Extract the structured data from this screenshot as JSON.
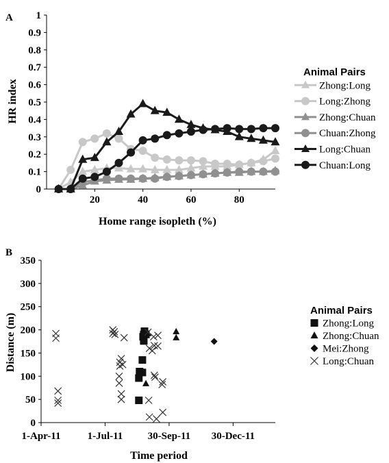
{
  "chart_data": [
    {
      "panel_label": "A",
      "type": "line",
      "xlabel": "Home range isopleth (%)",
      "ylabel": "HR index",
      "xlim": [
        0,
        95
      ],
      "ylim": [
        0,
        1
      ],
      "xticks": [
        20,
        40,
        60,
        80
      ],
      "yticks": [
        0,
        0.1,
        0.2,
        0.3,
        0.4,
        0.5,
        0.6,
        0.7,
        0.8,
        0.9,
        1
      ],
      "ytick_labels": [
        "0",
        "0.1",
        "0.2",
        "0.3",
        "0.4",
        "0.5",
        "0.6",
        "0.7",
        "0.8",
        "0.9",
        "1"
      ],
      "legend_title": "Animal Pairs",
      "legend_position": "right",
      "x": [
        5,
        10,
        15,
        20,
        25,
        30,
        35,
        40,
        45,
        50,
        55,
        60,
        65,
        70,
        75,
        80,
        85,
        90,
        95
      ],
      "series": [
        {
          "name": "Zhong:Long",
          "marker": "triangle",
          "color": "#c8c8c8",
          "values": [
            0,
            0.04,
            0.1,
            0.11,
            0.12,
            0.12,
            0.115,
            0.115,
            0.11,
            0.11,
            0.11,
            0.12,
            0.13,
            0.13,
            0.13,
            0.14,
            0.15,
            0.17,
            0.22
          ]
        },
        {
          "name": "Long:Zhong",
          "marker": "circle",
          "color": "#c8c8c8",
          "values": [
            0,
            0.11,
            0.27,
            0.29,
            0.32,
            0.29,
            0.23,
            0.22,
            0.18,
            0.17,
            0.165,
            0.165,
            0.16,
            0.145,
            0.145,
            0.14,
            0.15,
            0.16,
            0.175
          ]
        },
        {
          "name": "Zhong:Chuan",
          "marker": "triangle",
          "color": "#909090",
          "values": [
            0,
            0,
            0.02,
            0.045,
            0.05,
            0.055,
            0.055,
            0.06,
            0.065,
            0.07,
            0.075,
            0.08,
            0.085,
            0.09,
            0.095,
            0.095,
            0.1,
            0.1,
            0.105
          ]
        },
        {
          "name": "Chuan:Zhong",
          "marker": "circle",
          "color": "#909090",
          "values": [
            0,
            0,
            0.04,
            0.05,
            0.06,
            0.06,
            0.06,
            0.06,
            0.06,
            0.07,
            0.075,
            0.08,
            0.085,
            0.09,
            0.095,
            0.1,
            0.1,
            0.1,
            0.1
          ]
        },
        {
          "name": "Long:Chuan",
          "marker": "triangle",
          "color": "#1a1a1a",
          "values": [
            0,
            0,
            0.17,
            0.18,
            0.27,
            0.33,
            0.43,
            0.49,
            0.45,
            0.44,
            0.4,
            0.37,
            0.35,
            0.34,
            0.33,
            0.3,
            0.29,
            0.28,
            0.27
          ]
        },
        {
          "name": "Chuan:Long",
          "marker": "circle",
          "color": "#1a1a1a",
          "values": [
            0,
            0,
            0.06,
            0.07,
            0.1,
            0.15,
            0.21,
            0.28,
            0.29,
            0.31,
            0.32,
            0.33,
            0.34,
            0.345,
            0.35,
            0.345,
            0.345,
            0.35,
            0.35
          ]
        }
      ]
    },
    {
      "panel_label": "B",
      "type": "scatter",
      "xlabel": "Time period",
      "ylabel": "Distance (m)",
      "xlim": [
        "2011-04-01",
        "2012-02-28"
      ],
      "ylim": [
        0,
        350
      ],
      "xticks": [
        "2011-04-01",
        "2011-07-01",
        "2011-09-30",
        "2011-12-30"
      ],
      "xtick_labels": [
        "1-Apr-11",
        "1-Jul-11",
        "30-Sep-11",
        "30-Dec-11"
      ],
      "yticks": [
        0,
        50,
        100,
        150,
        200,
        250,
        300,
        350
      ],
      "legend_title": "Animal Pairs",
      "legend_position": "right",
      "series": [
        {
          "name": "Zhong:Long",
          "marker": "square",
          "color": "#111111",
          "points": [
            [
              "2011-08-18",
              48
            ],
            [
              "2011-08-18",
              96
            ],
            [
              "2011-08-19",
              110
            ],
            [
              "2011-08-23",
              108
            ],
            [
              "2011-08-23",
              135
            ],
            [
              "2011-08-25",
              176
            ],
            [
              "2011-08-24",
              185
            ],
            [
              "2011-08-25",
              190
            ],
            [
              "2011-08-26",
              197
            ],
            [
              "2011-08-28",
              190
            ]
          ]
        },
        {
          "name": "Zhong:Chuan",
          "marker": "triangle",
          "color": "#111111",
          "points": [
            [
              "2011-08-28",
              84
            ],
            [
              "2011-08-31",
              192
            ],
            [
              "2011-10-10",
              183
            ],
            [
              "2011-10-10",
              196
            ]
          ]
        },
        {
          "name": "Mei:Zhong",
          "marker": "diamond",
          "color": "#111111",
          "points": [
            [
              "2011-12-03",
              175
            ]
          ]
        },
        {
          "name": "Long:Chuan",
          "marker": "x",
          "color": "#333333",
          "points": [
            [
              "2011-04-22",
              192
            ],
            [
              "2011-04-22",
              182
            ],
            [
              "2011-04-25",
              68
            ],
            [
              "2011-04-25",
              48
            ],
            [
              "2011-04-25",
              42
            ],
            [
              "2011-07-12",
              200
            ],
            [
              "2011-07-12",
              192
            ],
            [
              "2011-07-14",
              196
            ],
            [
              "2011-07-15",
              190
            ],
            [
              "2011-07-22",
              130
            ],
            [
              "2011-07-22",
              122
            ],
            [
              "2011-07-24",
              138
            ],
            [
              "2011-07-26",
              125
            ],
            [
              "2011-07-21",
              100
            ],
            [
              "2011-07-21",
              85
            ],
            [
              "2011-07-24",
              62
            ],
            [
              "2011-07-24",
              50
            ],
            [
              "2011-07-28",
              183
            ],
            [
              "2011-08-31",
              195
            ],
            [
              "2011-09-01",
              48
            ],
            [
              "2011-09-02",
              160
            ],
            [
              "2011-09-02",
              12
            ],
            [
              "2011-09-06",
              155
            ],
            [
              "2011-09-08",
              185
            ],
            [
              "2011-09-09",
              166
            ],
            [
              "2011-09-09",
              102
            ],
            [
              "2011-09-10",
              98
            ],
            [
              "2011-09-12",
              8
            ],
            [
              "2011-09-14",
              188
            ],
            [
              "2011-09-14",
              165
            ],
            [
              "2011-09-20",
              82
            ],
            [
              "2011-09-21",
              88
            ],
            [
              "2011-09-21",
              22
            ]
          ]
        }
      ]
    }
  ]
}
